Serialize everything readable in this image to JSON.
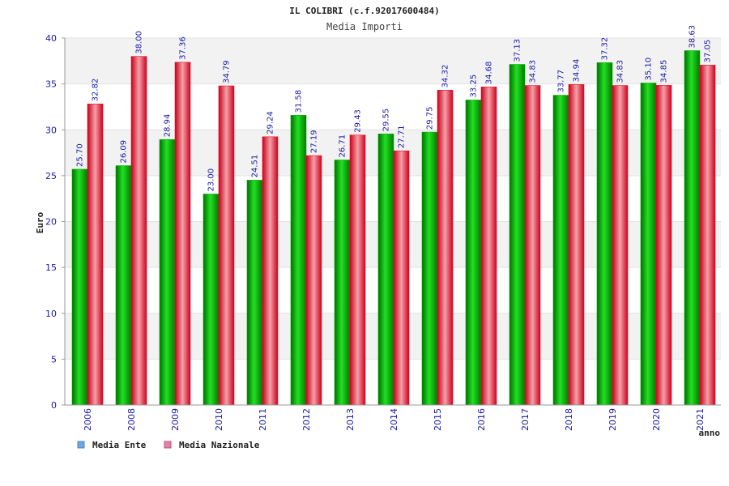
{
  "chart_data": {
    "type": "bar",
    "title": "IL COLIBRI (c.f.92017600484)",
    "subtitle": "Media Importi",
    "ylabel": "Euro",
    "xlabel": "anno",
    "ylim": [
      0,
      40
    ],
    "yticks": [
      0,
      5,
      10,
      15,
      20,
      25,
      30,
      35,
      40
    ],
    "categories": [
      "2006",
      "2008",
      "2009",
      "2010",
      "2011",
      "2012",
      "2013",
      "2014",
      "2015",
      "2016",
      "2017",
      "2018",
      "2019",
      "2020",
      "2021"
    ],
    "series": [
      {
        "name": "Media Ente",
        "values": [
          25.7,
          26.09,
          28.94,
          23.0,
          24.51,
          31.58,
          26.71,
          29.55,
          29.75,
          33.25,
          37.13,
          33.77,
          37.32,
          35.1,
          38.63
        ],
        "labels": [
          "25.70",
          "26.09",
          "28.94",
          "23.00",
          "24.51",
          "31.58",
          "26.71",
          "29.55",
          "29.75",
          "33.25",
          "37.13",
          "33.77",
          "37.32",
          "35.10",
          "38.63"
        ]
      },
      {
        "name": "Media Nazionale",
        "values": [
          32.82,
          38.0,
          37.36,
          34.79,
          29.24,
          27.19,
          29.43,
          27.71,
          34.32,
          34.68,
          34.83,
          34.94,
          34.83,
          34.85,
          37.05
        ],
        "labels": [
          "32.82",
          "38.00",
          "37.36",
          "34.79",
          "29.24",
          "27.19",
          "29.43",
          "27.71",
          "34.32",
          "34.68",
          "34.83",
          "34.94",
          "34.83",
          "34.85",
          "37.05"
        ]
      }
    ],
    "colors": {
      "ente": "#00b400",
      "nazionale": "#e8102a",
      "legend_ente": "#6aa8e8",
      "legend_nazionale": "#e87fa8",
      "band": "#f2f2f2"
    }
  }
}
